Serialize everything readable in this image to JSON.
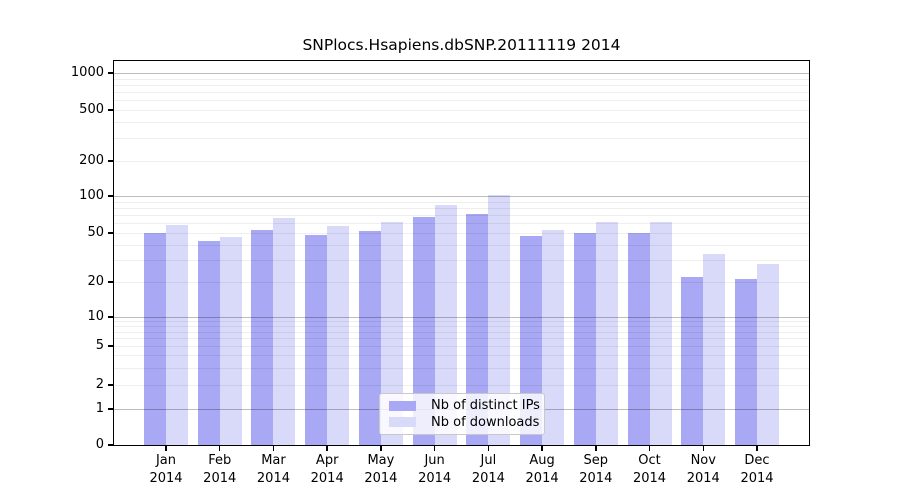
{
  "chart_data": {
    "type": "bar",
    "title": "SNPlocs.Hsapiens.dbSNP.20111119 2014",
    "categories": [
      "Jan",
      "Feb",
      "Mar",
      "Apr",
      "May",
      "Jun",
      "Jul",
      "Aug",
      "Sep",
      "Oct",
      "Nov",
      "Dec"
    ],
    "category_year": "2014",
    "series": [
      {
        "name": "Nb of distinct IPs",
        "color": "#a8a8f4",
        "values": [
          50,
          43,
          53,
          48,
          52,
          68,
          71,
          47,
          50,
          50,
          22,
          21
        ]
      },
      {
        "name": "Nb of downloads",
        "color": "#d9d9fa",
        "values": [
          58,
          46,
          66,
          57,
          61,
          85,
          103,
          53,
          61,
          61,
          34,
          28
        ]
      }
    ],
    "y_axis": {
      "scale": "pseudo-log",
      "tick_labels": [
        "1000",
        "500",
        "200",
        "100",
        "50",
        "20",
        "10",
        "5",
        "2",
        "1",
        "0"
      ],
      "tick_values": [
        1000,
        500,
        200,
        100,
        50,
        20,
        10,
        5,
        2,
        1,
        0
      ],
      "minor_grid_values": [
        2,
        3,
        4,
        5,
        6,
        7,
        8,
        9,
        20,
        30,
        40,
        50,
        60,
        70,
        80,
        90,
        200,
        300,
        400,
        500,
        600,
        700,
        800,
        900
      ],
      "major_grid_values": [
        1,
        10,
        100,
        1000
      ]
    },
    "legend": {
      "position": "bottom-center",
      "entries": [
        "Nb of distinct IPs",
        "Nb of downloads"
      ]
    },
    "grid": "horizontal log gridlines drawn over bars",
    "background_color": "#ffffff",
    "axis_color": "#000000"
  }
}
